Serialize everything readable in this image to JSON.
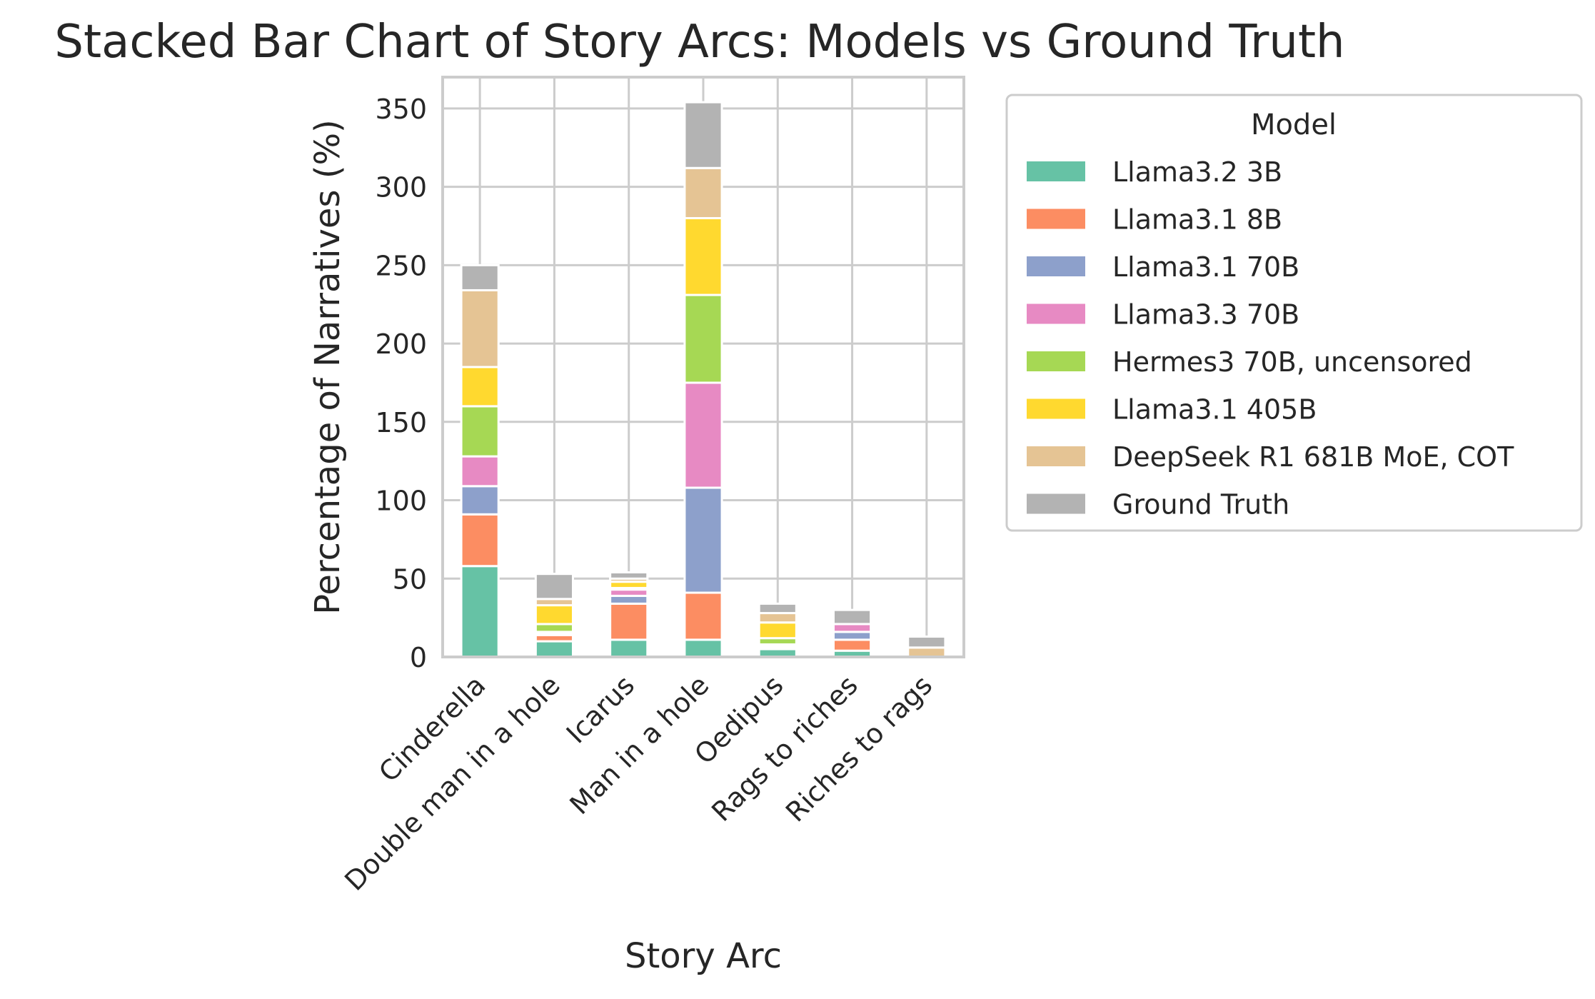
{
  "chart_data": {
    "type": "bar",
    "stacked": true,
    "title": "Stacked Bar Chart of Story Arcs: Models vs Ground Truth",
    "xlabel": "Story Arc",
    "ylabel": "Percentage of Narratives (%)",
    "ylim": [
      0,
      370
    ],
    "yticks": [
      0,
      50,
      100,
      150,
      200,
      250,
      300,
      350
    ],
    "grid": true,
    "legend": {
      "title": "Model",
      "placement": "right"
    },
    "categories": [
      "Cinderella",
      "Double man in a hole",
      "Icarus",
      "Man in a hole",
      "Oedipus",
      "Rags to riches",
      "Riches to rags"
    ],
    "series": [
      {
        "name": "Llama3.2 3B",
        "color": "#66c2a5",
        "values": [
          58,
          10,
          11,
          11,
          5,
          4,
          0
        ]
      },
      {
        "name": "Llama3.1 8B",
        "color": "#fc8d62",
        "values": [
          33,
          4,
          23,
          30,
          1,
          7,
          0
        ]
      },
      {
        "name": "Llama3.1 70B",
        "color": "#8da0cb",
        "values": [
          18,
          1,
          5,
          67,
          1,
          5,
          0
        ]
      },
      {
        "name": "Llama3.3 70B",
        "color": "#e78ac3",
        "values": [
          19,
          1,
          4,
          67,
          1,
          5,
          0
        ]
      },
      {
        "name": "Hermes3 70B, uncensored",
        "color": "#a6d854",
        "values": [
          32,
          5,
          1,
          56,
          4,
          0,
          0
        ]
      },
      {
        "name": "Llama3.1 405B",
        "color": "#ffd92f",
        "values": [
          25,
          12,
          4,
          49,
          10,
          0,
          0
        ]
      },
      {
        "name": "DeepSeek R1 681B MoE, COT",
        "color": "#e5c494",
        "values": [
          49,
          4,
          2,
          32,
          6,
          0,
          6
        ]
      },
      {
        "name": "Ground Truth",
        "color": "#b3b3b3",
        "values": [
          16,
          16,
          4,
          42,
          6,
          9,
          7
        ]
      }
    ]
  }
}
